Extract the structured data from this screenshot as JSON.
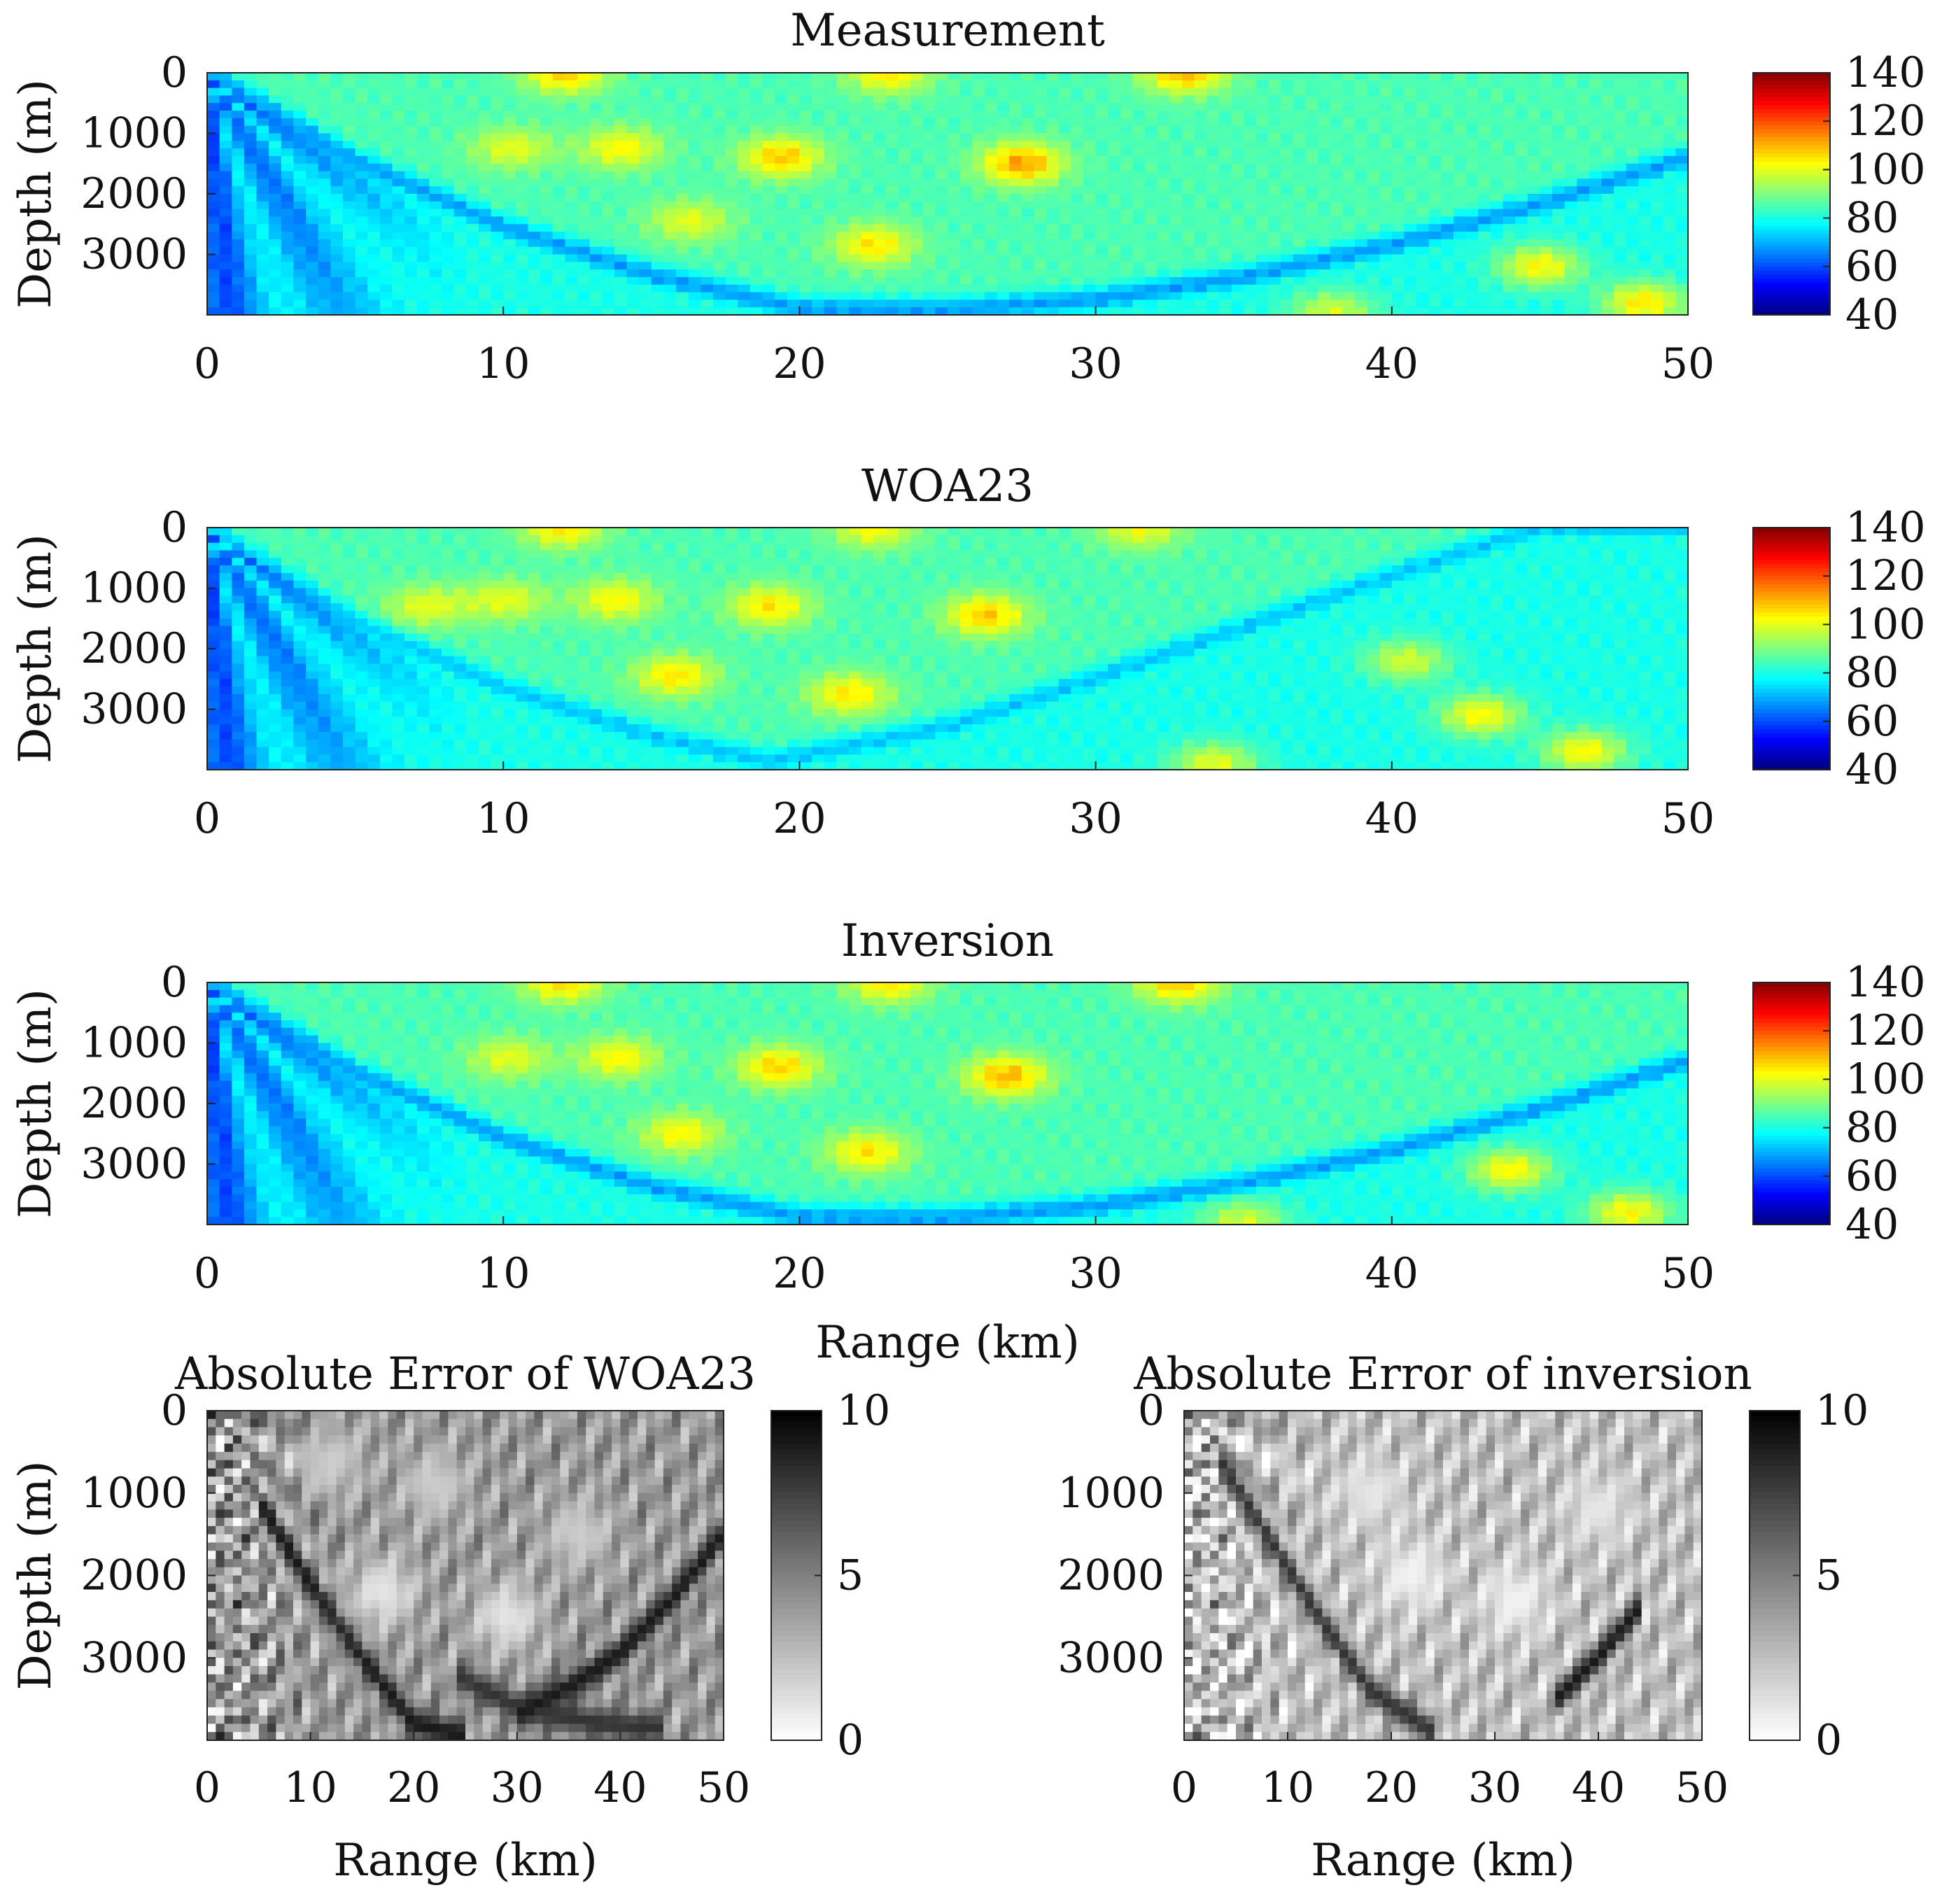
{
  "chart_data": [
    {
      "id": "measurement",
      "type": "heatmap",
      "title": "Measurement",
      "xlabel": "",
      "ylabel": "Depth (m)",
      "xlim": [
        0,
        50
      ],
      "ylim": [
        0,
        4000
      ],
      "y_reversed": true,
      "x_ticks": [
        0,
        10,
        20,
        30,
        40,
        50
      ],
      "y_ticks": [
        0,
        1000,
        2000,
        3000
      ],
      "colorbar": {
        "colormap": "jet",
        "limits": [
          40,
          140
        ],
        "ticks": [
          40,
          60,
          80,
          100,
          120,
          140
        ]
      },
      "background_value": 85,
      "features": {
        "ray_count": 8,
        "beam_curve": [
          [
            0,
            0
          ],
          [
            5,
            1450
          ],
          [
            10,
            2550
          ],
          [
            15,
            3350
          ],
          [
            20,
            3900
          ],
          [
            25,
            3920
          ],
          [
            30,
            3750
          ],
          [
            35,
            3380
          ],
          [
            40,
            2850
          ],
          [
            45,
            2180
          ],
          [
            50,
            1400
          ]
        ],
        "beam_value": 68,
        "hotspots": [
          {
            "x": 12.1,
            "y": 0,
            "v": 108
          },
          {
            "x": 23.0,
            "y": 0,
            "v": 105
          },
          {
            "x": 33.0,
            "y": 0,
            "v": 110
          },
          {
            "x": 10.3,
            "y": 1250,
            "v": 100
          },
          {
            "x": 14.0,
            "y": 1250,
            "v": 103
          },
          {
            "x": 19.4,
            "y": 1400,
            "v": 108
          },
          {
            "x": 27.5,
            "y": 1500,
            "v": 112
          },
          {
            "x": 16.3,
            "y": 2450,
            "v": 100
          },
          {
            "x": 22.5,
            "y": 2850,
            "v": 105
          },
          {
            "x": 45.0,
            "y": 3200,
            "v": 108
          },
          {
            "x": 48.5,
            "y": 3800,
            "v": 110
          },
          {
            "x": 38.0,
            "y": 3950,
            "v": 103
          }
        ]
      }
    },
    {
      "id": "woa23",
      "type": "heatmap",
      "title": "WOA23",
      "xlabel": "",
      "ylabel": "Depth (m)",
      "xlim": [
        0,
        50
      ],
      "ylim": [
        0,
        4000
      ],
      "y_reversed": true,
      "x_ticks": [
        0,
        10,
        20,
        30,
        40,
        50
      ],
      "y_ticks": [
        0,
        1000,
        2000,
        3000
      ],
      "colorbar": {
        "colormap": "jet",
        "limits": [
          40,
          140
        ],
        "ticks": [
          40,
          60,
          80,
          100,
          120,
          140
        ]
      },
      "background_value": 85,
      "features": {
        "ray_count": 8,
        "beam_curve": [
          [
            0,
            0
          ],
          [
            5,
            1550
          ],
          [
            10,
            2650
          ],
          [
            15,
            3450
          ],
          [
            19,
            3870
          ],
          [
            25,
            3300
          ],
          [
            30,
            2500
          ],
          [
            35,
            1650
          ],
          [
            40,
            800
          ],
          [
            45,
            0
          ]
        ],
        "beam_value": 72,
        "hotspots": [
          {
            "x": 12.0,
            "y": 0,
            "v": 105
          },
          {
            "x": 22.5,
            "y": 0,
            "v": 103
          },
          {
            "x": 31.5,
            "y": 0,
            "v": 102
          },
          {
            "x": 7.4,
            "y": 1300,
            "v": 100
          },
          {
            "x": 10.1,
            "y": 1200,
            "v": 100
          },
          {
            "x": 13.8,
            "y": 1200,
            "v": 103
          },
          {
            "x": 19.0,
            "y": 1300,
            "v": 105
          },
          {
            "x": 26.3,
            "y": 1450,
            "v": 108
          },
          {
            "x": 15.8,
            "y": 2450,
            "v": 105
          },
          {
            "x": 21.7,
            "y": 2750,
            "v": 105
          },
          {
            "x": 40.5,
            "y": 2200,
            "v": 103
          },
          {
            "x": 43.0,
            "y": 3100,
            "v": 108
          },
          {
            "x": 46.5,
            "y": 3700,
            "v": 108
          },
          {
            "x": 34.0,
            "y": 3900,
            "v": 105
          }
        ]
      }
    },
    {
      "id": "inversion",
      "type": "heatmap",
      "title": "Inversion",
      "xlabel": "Range (km)",
      "ylabel": "Depth (m)",
      "xlim": [
        0,
        50
      ],
      "ylim": [
        0,
        4000
      ],
      "y_reversed": true,
      "x_ticks": [
        0,
        10,
        20,
        30,
        40,
        50
      ],
      "y_ticks": [
        0,
        1000,
        2000,
        3000
      ],
      "colorbar": {
        "colormap": "jet",
        "limits": [
          40,
          140
        ],
        "ticks": [
          40,
          60,
          80,
          100,
          120,
          140
        ]
      },
      "background_value": 85,
      "features": {
        "ray_count": 8,
        "beam_curve": [
          [
            0,
            0
          ],
          [
            5,
            1480
          ],
          [
            10,
            2580
          ],
          [
            15,
            3380
          ],
          [
            20,
            3880
          ],
          [
            25,
            3900
          ],
          [
            30,
            3700
          ],
          [
            35,
            3320
          ],
          [
            40,
            2780
          ],
          [
            45,
            2100
          ],
          [
            50,
            1300
          ]
        ],
        "beam_value": 68,
        "hotspots": [
          {
            "x": 12.0,
            "y": 0,
            "v": 106
          },
          {
            "x": 23.0,
            "y": 0,
            "v": 105
          },
          {
            "x": 32.8,
            "y": 0,
            "v": 108
          },
          {
            "x": 10.2,
            "y": 1250,
            "v": 100
          },
          {
            "x": 13.9,
            "y": 1250,
            "v": 103
          },
          {
            "x": 19.3,
            "y": 1400,
            "v": 107
          },
          {
            "x": 27.0,
            "y": 1550,
            "v": 110
          },
          {
            "x": 16.0,
            "y": 2500,
            "v": 103
          },
          {
            "x": 22.3,
            "y": 2800,
            "v": 105
          },
          {
            "x": 44.0,
            "y": 3100,
            "v": 108
          },
          {
            "x": 48.0,
            "y": 3800,
            "v": 108
          },
          {
            "x": 35.0,
            "y": 3950,
            "v": 103
          }
        ]
      }
    },
    {
      "id": "abs-error-woa23",
      "type": "heatmap",
      "title": "Absolute Error of WOA23",
      "xlabel": "Range (km)",
      "ylabel": "Depth (m)",
      "xlim": [
        0,
        50
      ],
      "ylim": [
        0,
        4000
      ],
      "y_reversed": true,
      "x_ticks": [
        0,
        10,
        20,
        30,
        40,
        50
      ],
      "y_ticks": [
        0,
        1000,
        2000,
        3000
      ],
      "colorbar": {
        "colormap": "gray-reversed",
        "limits": [
          0,
          10
        ],
        "ticks": [
          0,
          5,
          10
        ]
      },
      "background_value": 4,
      "features": {
        "dark_bands": [
          {
            "points": [
              [
                5,
                1100
              ],
              [
                10,
                2100
              ],
              [
                15,
                3000
              ],
              [
                20,
                3800
              ],
              [
                25,
                3950
              ]
            ],
            "v": 9
          },
          {
            "points": [
              [
                30,
                3700
              ],
              [
                35,
                3350
              ],
              [
                40,
                2950
              ],
              [
                45,
                2300
              ],
              [
                50,
                1500
              ]
            ],
            "v": 9
          },
          {
            "points": [
              [
                24,
                3200
              ],
              [
                30,
                3600
              ],
              [
                38,
                3800
              ],
              [
                44,
                3850
              ]
            ],
            "v": 8
          }
        ],
        "light_blobs": [
          {
            "x": 17,
            "y": 2200,
            "v": 1
          },
          {
            "x": 29,
            "y": 2500,
            "v": 1
          },
          {
            "x": 36,
            "y": 1500,
            "v": 2
          },
          {
            "x": 12,
            "y": 600,
            "v": 2
          },
          {
            "x": 22,
            "y": 900,
            "v": 2
          }
        ]
      }
    },
    {
      "id": "abs-error-inversion",
      "type": "heatmap",
      "title": "Absolute Error of inversion",
      "xlabel": "Range (km)",
      "ylabel": "Depth (m)",
      "xlim": [
        0,
        50
      ],
      "ylim": [
        0,
        4000
      ],
      "y_reversed": true,
      "x_ticks": [
        0,
        10,
        20,
        30,
        40,
        50
      ],
      "y_ticks": [
        0,
        1000,
        2000,
        3000
      ],
      "colorbar": {
        "colormap": "gray-reversed",
        "limits": [
          0,
          10
        ],
        "ticks": [
          0,
          5,
          10
        ]
      },
      "background_value": 2.5,
      "features": {
        "dark_bands": [
          {
            "points": [
              [
                3,
                500
              ],
              [
                8,
                1500
              ],
              [
                13,
                2500
              ],
              [
                18,
                3400
              ],
              [
                24,
                3900
              ]
            ],
            "v": 8
          },
          {
            "points": [
              [
                36,
                3500
              ],
              [
                40,
                3000
              ],
              [
                44,
                2400
              ]
            ],
            "v": 9
          }
        ],
        "light_blobs": [
          {
            "x": 22,
            "y": 2000,
            "v": 0.5
          },
          {
            "x": 32,
            "y": 2300,
            "v": 0.5
          },
          {
            "x": 18,
            "y": 1000,
            "v": 1
          },
          {
            "x": 40,
            "y": 1200,
            "v": 1
          }
        ]
      }
    }
  ]
}
